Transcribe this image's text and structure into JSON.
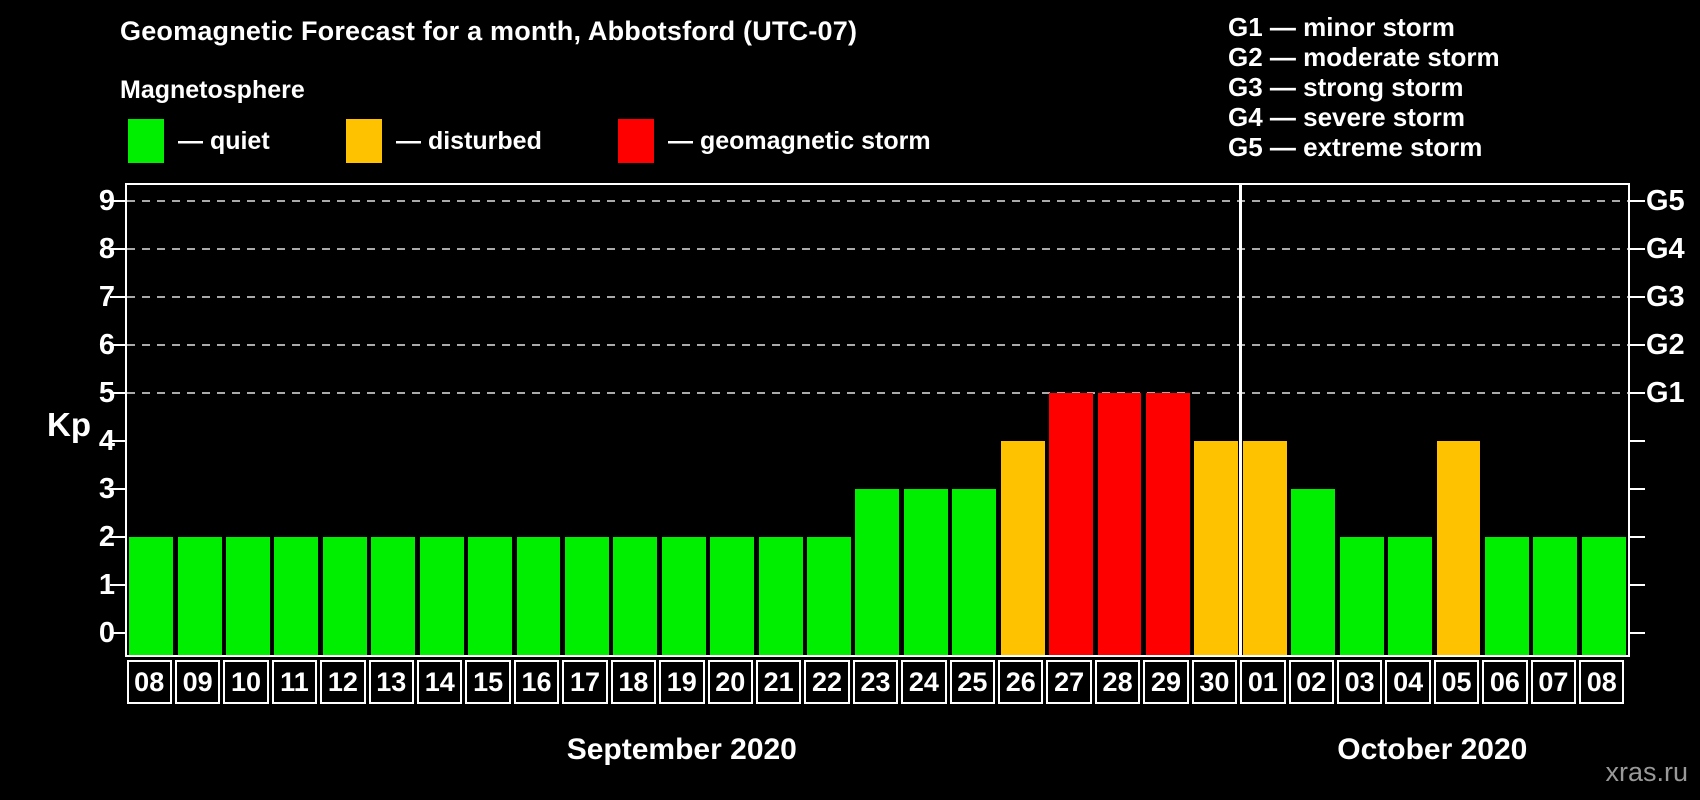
{
  "title": "Geomagnetic Forecast for a month, Abbotsford (UTC-07)",
  "subtitle": "Magnetosphere",
  "condition_legend": [
    {
      "name": "quiet",
      "label": "— quiet",
      "color": "#00EE00",
      "x": 128
    },
    {
      "name": "disturbed",
      "label": "— disturbed",
      "color": "#FFC200",
      "x": 346
    },
    {
      "name": "storm",
      "label": "— geomagnetic storm",
      "color": "#FF0000",
      "x": 618
    }
  ],
  "storm_scale_legend": [
    {
      "label": "G1 — minor storm"
    },
    {
      "label": "G2 — moderate storm"
    },
    {
      "label": "G3 — strong storm"
    },
    {
      "label": "G4 — severe storm"
    },
    {
      "label": "G5 — extreme storm"
    }
  ],
  "watermark": "xras.ru",
  "chart_data": {
    "type": "bar",
    "title": "Geomagnetic Forecast for a month, Abbotsford (UTC-07)",
    "ylabel": "Kp",
    "ylim": [
      0,
      9
    ],
    "yticks": [
      0,
      1,
      2,
      3,
      4,
      5,
      6,
      7,
      8,
      9
    ],
    "grid_levels": [
      5,
      6,
      7,
      8,
      9
    ],
    "grid_on": true,
    "right_axis": [
      {
        "level": 5,
        "label": "G1"
      },
      {
        "level": 6,
        "label": "G2"
      },
      {
        "level": 7,
        "label": "G3"
      },
      {
        "level": 8,
        "label": "G4"
      },
      {
        "level": 9,
        "label": "G5"
      }
    ],
    "status_colors": {
      "quiet": "#00EE00",
      "disturbed": "#FFC200",
      "storm": "#FF0000"
    },
    "months": [
      {
        "label": "September 2020",
        "first_index": 0,
        "count": 23
      },
      {
        "label": "October 2020",
        "first_index": 23,
        "count": 8
      }
    ],
    "month_boundary_after_index": 22,
    "bars": [
      {
        "day": "08",
        "kp": 2,
        "status": "quiet"
      },
      {
        "day": "09",
        "kp": 2,
        "status": "quiet"
      },
      {
        "day": "10",
        "kp": 2,
        "status": "quiet"
      },
      {
        "day": "11",
        "kp": 2,
        "status": "quiet"
      },
      {
        "day": "12",
        "kp": 2,
        "status": "quiet"
      },
      {
        "day": "13",
        "kp": 2,
        "status": "quiet"
      },
      {
        "day": "14",
        "kp": 2,
        "status": "quiet"
      },
      {
        "day": "15",
        "kp": 2,
        "status": "quiet"
      },
      {
        "day": "16",
        "kp": 2,
        "status": "quiet"
      },
      {
        "day": "17",
        "kp": 2,
        "status": "quiet"
      },
      {
        "day": "18",
        "kp": 2,
        "status": "quiet"
      },
      {
        "day": "19",
        "kp": 2,
        "status": "quiet"
      },
      {
        "day": "20",
        "kp": 2,
        "status": "quiet"
      },
      {
        "day": "21",
        "kp": 2,
        "status": "quiet"
      },
      {
        "day": "22",
        "kp": 2,
        "status": "quiet"
      },
      {
        "day": "23",
        "kp": 3,
        "status": "quiet"
      },
      {
        "day": "24",
        "kp": 3,
        "status": "quiet"
      },
      {
        "day": "25",
        "kp": 3,
        "status": "quiet"
      },
      {
        "day": "26",
        "kp": 4,
        "status": "disturbed"
      },
      {
        "day": "27",
        "kp": 5,
        "status": "storm"
      },
      {
        "day": "28",
        "kp": 5,
        "status": "storm"
      },
      {
        "day": "29",
        "kp": 5,
        "status": "storm"
      },
      {
        "day": "30",
        "kp": 4,
        "status": "disturbed"
      },
      {
        "day": "01",
        "kp": 4,
        "status": "disturbed"
      },
      {
        "day": "02",
        "kp": 3,
        "status": "quiet"
      },
      {
        "day": "03",
        "kp": 2,
        "status": "quiet"
      },
      {
        "day": "04",
        "kp": 2,
        "status": "quiet"
      },
      {
        "day": "05",
        "kp": 4,
        "status": "disturbed"
      },
      {
        "day": "06",
        "kp": 2,
        "status": "quiet"
      },
      {
        "day": "07",
        "kp": 2,
        "status": "quiet"
      },
      {
        "day": "08",
        "kp": 2,
        "status": "quiet"
      }
    ]
  }
}
